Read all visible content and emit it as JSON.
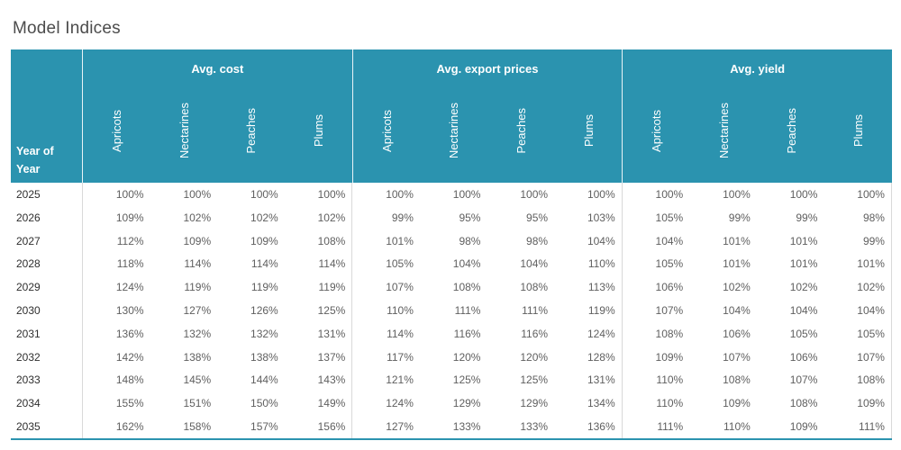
{
  "title": "Model Indices",
  "colors": {
    "header_background": "#2b93af",
    "header_text": "#ffffff",
    "bottom_rule": "#2b93af",
    "value_text": "#5f5f5f",
    "year_text": "#2f2f2f",
    "separator": "#d9d9d9",
    "title_text": "#4c4c4c"
  },
  "chart_data": {
    "type": "table",
    "title": "Model Indices",
    "row_header_label": "Year of Year",
    "column_groups": [
      {
        "key": "cost",
        "label": "Avg. cost",
        "columns": [
          "Apricots",
          "Nectarines",
          "Peaches",
          "Plums"
        ]
      },
      {
        "key": "export",
        "label": "Avg. export prices",
        "columns": [
          "Apricots",
          "Nectarines",
          "Peaches",
          "Plums"
        ]
      },
      {
        "key": "yield",
        "label": "Avg. yield",
        "columns": [
          "Apricots",
          "Nectarines",
          "Peaches",
          "Plums"
        ]
      }
    ],
    "rows": [
      {
        "year": "2025",
        "cost": [
          "100%",
          "100%",
          "100%",
          "100%"
        ],
        "export": [
          "100%",
          "100%",
          "100%",
          "100%"
        ],
        "yield": [
          "100%",
          "100%",
          "100%",
          "100%"
        ]
      },
      {
        "year": "2026",
        "cost": [
          "109%",
          "102%",
          "102%",
          "102%"
        ],
        "export": [
          "99%",
          "95%",
          "95%",
          "103%"
        ],
        "yield": [
          "105%",
          "99%",
          "99%",
          "98%"
        ]
      },
      {
        "year": "2027",
        "cost": [
          "112%",
          "109%",
          "109%",
          "108%"
        ],
        "export": [
          "101%",
          "98%",
          "98%",
          "104%"
        ],
        "yield": [
          "104%",
          "101%",
          "101%",
          "99%"
        ]
      },
      {
        "year": "2028",
        "cost": [
          "118%",
          "114%",
          "114%",
          "114%"
        ],
        "export": [
          "105%",
          "104%",
          "104%",
          "110%"
        ],
        "yield": [
          "105%",
          "101%",
          "101%",
          "101%"
        ]
      },
      {
        "year": "2029",
        "cost": [
          "124%",
          "119%",
          "119%",
          "119%"
        ],
        "export": [
          "107%",
          "108%",
          "108%",
          "113%"
        ],
        "yield": [
          "106%",
          "102%",
          "102%",
          "102%"
        ]
      },
      {
        "year": "2030",
        "cost": [
          "130%",
          "127%",
          "126%",
          "125%"
        ],
        "export": [
          "110%",
          "111%",
          "111%",
          "119%"
        ],
        "yield": [
          "107%",
          "104%",
          "104%",
          "104%"
        ]
      },
      {
        "year": "2031",
        "cost": [
          "136%",
          "132%",
          "132%",
          "131%"
        ],
        "export": [
          "114%",
          "116%",
          "116%",
          "124%"
        ],
        "yield": [
          "108%",
          "106%",
          "105%",
          "105%"
        ]
      },
      {
        "year": "2032",
        "cost": [
          "142%",
          "138%",
          "138%",
          "137%"
        ],
        "export": [
          "117%",
          "120%",
          "120%",
          "128%"
        ],
        "yield": [
          "109%",
          "107%",
          "106%",
          "107%"
        ]
      },
      {
        "year": "2033",
        "cost": [
          "148%",
          "145%",
          "144%",
          "143%"
        ],
        "export": [
          "121%",
          "125%",
          "125%",
          "131%"
        ],
        "yield": [
          "110%",
          "108%",
          "107%",
          "108%"
        ]
      },
      {
        "year": "2034",
        "cost": [
          "155%",
          "151%",
          "150%",
          "149%"
        ],
        "export": [
          "124%",
          "129%",
          "129%",
          "134%"
        ],
        "yield": [
          "110%",
          "109%",
          "108%",
          "109%"
        ]
      },
      {
        "year": "2035",
        "cost": [
          "162%",
          "158%",
          "157%",
          "156%"
        ],
        "export": [
          "127%",
          "133%",
          "133%",
          "136%"
        ],
        "yield": [
          "111%",
          "110%",
          "109%",
          "111%"
        ]
      }
    ]
  }
}
